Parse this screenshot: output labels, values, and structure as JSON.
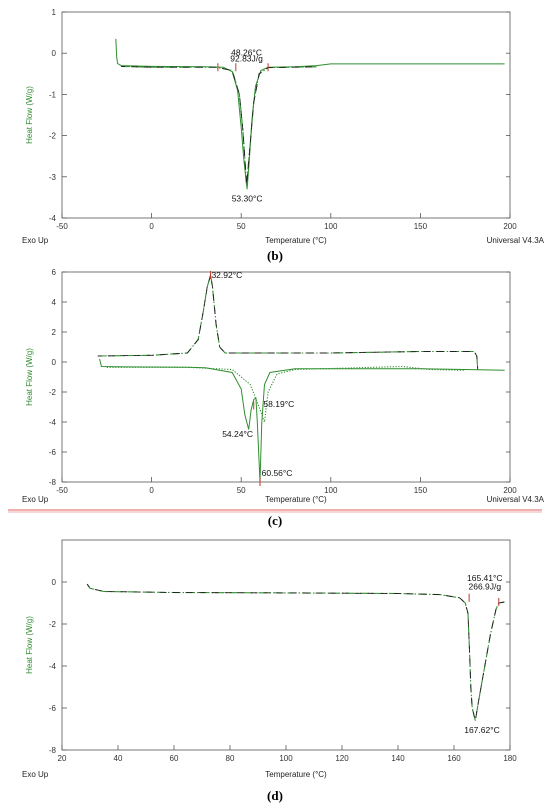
{
  "colors": {
    "trace": "#2f8f2f",
    "marker": "#c0392b",
    "separator": "#e06060",
    "axis": "#555555"
  },
  "chart_data": [
    {
      "type": "line",
      "panel_label": "(b)",
      "ylabel": "Heat Flow (W/g)",
      "xlabel": "Temperature (°C)",
      "footer_left": "Exo Up",
      "footer_right": "Universal V4.3A",
      "xlim": [
        -50,
        200
      ],
      "ylim": [
        -4,
        1
      ],
      "xticks": [
        -50,
        0,
        50,
        100,
        150,
        200
      ],
      "yticks": [
        1,
        0,
        -1,
        -2,
        -3,
        -4
      ],
      "series": [
        {
          "style": "solid",
          "points": [
            [
              -20,
              0.35
            ],
            [
              -19.5,
              -0.1
            ],
            [
              -19,
              -0.25
            ],
            [
              -17,
              -0.3
            ],
            [
              0,
              -0.32
            ],
            [
              30,
              -0.33
            ],
            [
              40,
              -0.34
            ],
            [
              45,
              -0.45
            ],
            [
              48,
              -0.9
            ],
            [
              50,
              -1.8
            ],
            [
              51.5,
              -2.6
            ],
            [
              53.3,
              -3.3
            ],
            [
              54.5,
              -2.6
            ],
            [
              56,
              -1.6
            ],
            [
              58,
              -0.8
            ],
            [
              61,
              -0.42
            ],
            [
              65,
              -0.34
            ],
            [
              80,
              -0.33
            ],
            [
              92,
              -0.3
            ],
            [
              100,
              -0.26
            ],
            [
              150,
              -0.26
            ],
            [
              197,
              -0.26
            ]
          ]
        },
        {
          "style": "dashed",
          "points": [
            [
              -17,
              -0.32
            ],
            [
              0,
              -0.34
            ],
            [
              36,
              -0.34
            ],
            [
              45,
              -0.42
            ],
            [
              49,
              -1.0
            ],
            [
              51,
              -1.9
            ],
            [
              53,
              -3.2
            ],
            [
              55,
              -2.2
            ],
            [
              57,
              -1.2
            ],
            [
              60,
              -0.5
            ],
            [
              65,
              -0.35
            ],
            [
              92,
              -0.33
            ]
          ]
        }
      ],
      "annotations": [
        {
          "text": "48.26°C",
          "x": 53,
          "y": -0.05
        },
        {
          "text": "92.83J/g",
          "x": 53,
          "y": -0.2
        },
        {
          "text": "53.30°C",
          "x": 53.3,
          "y": -3.6
        }
      ],
      "markers": [
        [
          37,
          -0.34
        ],
        [
          47,
          -0.34
        ],
        [
          65,
          -0.34
        ]
      ]
    },
    {
      "type": "line",
      "panel_label": "(c)",
      "ylabel": "Heat Flow (W/g)",
      "xlabel": "Temperature (°C)",
      "footer_left": "Exo Up",
      "footer_right": "Universal V4.3A",
      "xlim": [
        -50,
        200
      ],
      "ylim": [
        -8,
        6
      ],
      "xticks": [
        -50,
        0,
        50,
        100,
        150,
        200
      ],
      "yticks": [
        6,
        4,
        2,
        0,
        -2,
        -4,
        -6,
        -8
      ],
      "series": [
        {
          "style": "dashed",
          "points": [
            [
              -30,
              0.4
            ],
            [
              0,
              0.45
            ],
            [
              20,
              0.6
            ],
            [
              26,
              1.5
            ],
            [
              29,
              3.5
            ],
            [
              31,
              5.0
            ],
            [
              32.9,
              5.8
            ],
            [
              34,
              5.0
            ],
            [
              36,
              2.5
            ],
            [
              38,
              1.0
            ],
            [
              41,
              0.6
            ],
            [
              60,
              0.6
            ],
            [
              100,
              0.6
            ],
            [
              150,
              0.7
            ],
            [
              180,
              0.7
            ],
            [
              181.5,
              0.4
            ],
            [
              182,
              -0.5
            ]
          ]
        },
        {
          "style": "solid",
          "points": [
            [
              -29,
              0.2
            ],
            [
              -28,
              -0.3
            ],
            [
              -20,
              -0.32
            ],
            [
              20,
              -0.35
            ],
            [
              30,
              -0.38
            ],
            [
              45,
              -0.7
            ],
            [
              50,
              -1.8
            ],
            [
              52,
              -3.5
            ],
            [
              54.2,
              -4.5
            ],
            [
              55.5,
              -3.2
            ],
            [
              57,
              -2.5
            ],
            [
              58.2,
              -2.4
            ],
            [
              59,
              -4.0
            ],
            [
              60.5,
              -8.0
            ],
            [
              61.5,
              -4.0
            ],
            [
              63,
              -1.5
            ],
            [
              66,
              -0.7
            ],
            [
              80,
              -0.45
            ],
            [
              120,
              -0.45
            ],
            [
              150,
              -0.45
            ],
            [
              175,
              -0.5
            ],
            [
              197,
              -0.55
            ]
          ]
        },
        {
          "style": "dotted",
          "points": [
            [
              -25,
              -0.35
            ],
            [
              20,
              -0.35
            ],
            [
              45,
              -0.5
            ],
            [
              55,
              -1.5
            ],
            [
              60,
              -3.0
            ],
            [
              63,
              -4.0
            ],
            [
              65,
              -2.0
            ],
            [
              70,
              -0.8
            ],
            [
              80,
              -0.5
            ],
            [
              140,
              -0.3
            ],
            [
              155,
              -0.5
            ],
            [
              175,
              -0.55
            ]
          ]
        }
      ],
      "annotations": [
        {
          "text": "32.92°C",
          "x": 42,
          "y": 5.6
        },
        {
          "text": "58.19°C",
          "x": 71,
          "y": -3.0
        },
        {
          "text": "54.24°C",
          "x": 48,
          "y": -5.0
        },
        {
          "text": "60.56°C",
          "x": 70,
          "y": -7.6
        }
      ],
      "markers": [
        [
          32.9,
          5.8
        ],
        [
          57,
          -2.9
        ],
        [
          60.5,
          -8.0
        ]
      ]
    },
    {
      "type": "line",
      "panel_label": "(d)",
      "ylabel": "Heat Flow (W/g)",
      "xlabel": "Temperature (°C)",
      "footer_left": "Exo Up",
      "footer_right": "",
      "xlim": [
        20,
        180
      ],
      "ylim": [
        -8,
        2
      ],
      "xticks": [
        20,
        40,
        60,
        80,
        100,
        120,
        140,
        160,
        180
      ],
      "yticks": [
        0,
        -2,
        -4,
        -6,
        -8
      ],
      "series": [
        {
          "style": "dashed",
          "points": [
            [
              29,
              -0.1
            ],
            [
              30,
              -0.3
            ],
            [
              35,
              -0.45
            ],
            [
              60,
              -0.5
            ],
            [
              100,
              -0.52
            ],
            [
              140,
              -0.55
            ],
            [
              155,
              -0.6
            ],
            [
              162,
              -0.75
            ],
            [
              164,
              -1.0
            ],
            [
              165,
              -1.5
            ],
            [
              165.6,
              -3.5
            ],
            [
              166,
              -5.0
            ],
            [
              166.5,
              -6.0
            ],
            [
              167.6,
              -6.6
            ],
            [
              169,
              -5.5
            ],
            [
              171,
              -4.0
            ],
            [
              173,
              -2.5
            ],
            [
              175,
              -1.3
            ],
            [
              176,
              -1.0
            ],
            [
              178,
              -0.95
            ]
          ]
        }
      ],
      "annotations": [
        {
          "text": "165.41°C",
          "x": 171,
          "y": 0.05
        },
        {
          "text": "266.9J/g",
          "x": 171,
          "y": -0.35
        },
        {
          "text": "167.62°C",
          "x": 170,
          "y": -7.2
        }
      ],
      "markers": [
        [
          165.4,
          -0.75
        ],
        [
          176,
          -0.95
        ]
      ]
    }
  ]
}
